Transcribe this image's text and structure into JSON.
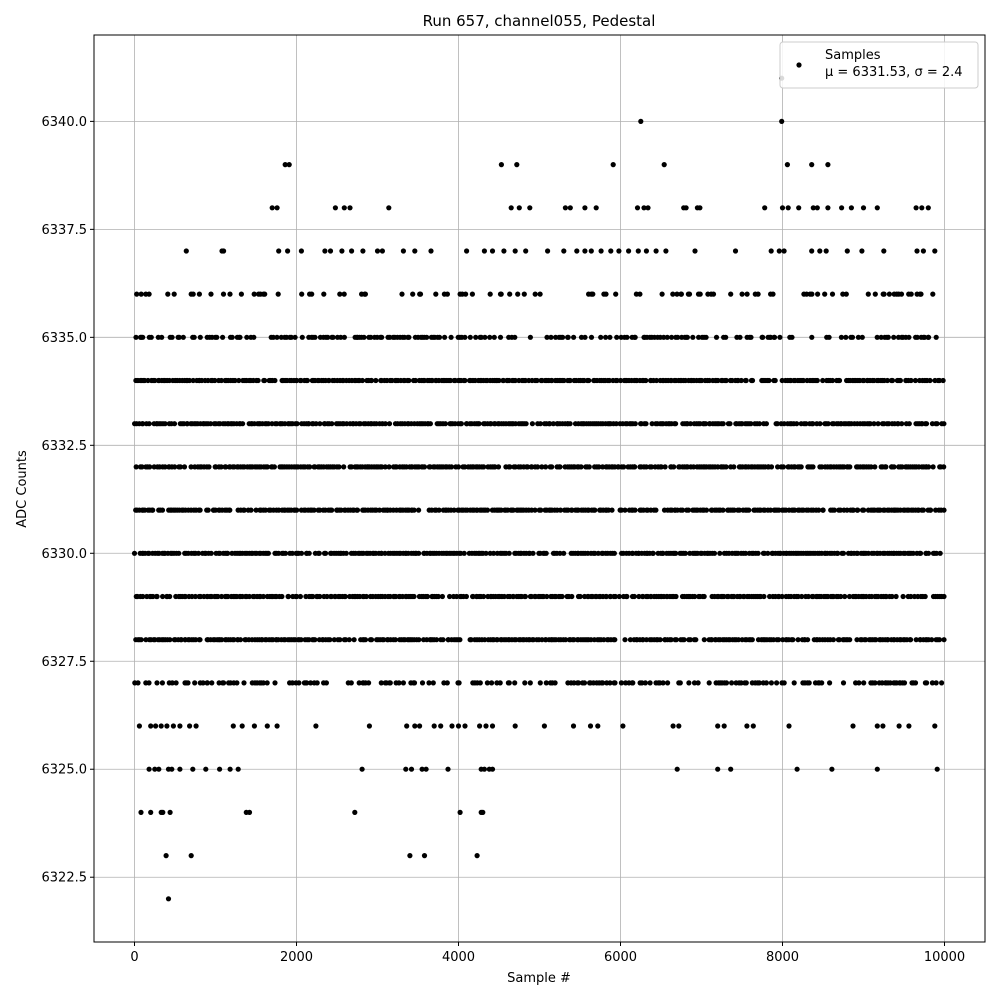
{
  "chart_data": {
    "type": "scatter",
    "title": "Run 657, channel055, Pedestal",
    "xlabel": "Sample #",
    "ylabel": "ADC Counts",
    "xlim": [
      -500,
      10500
    ],
    "ylim": [
      6321.0,
      6342.0
    ],
    "x_ticks": [
      0,
      2000,
      4000,
      6000,
      8000,
      10000
    ],
    "y_ticks": [
      6322.5,
      6325.0,
      6327.5,
      6330.0,
      6332.5,
      6335.0,
      6337.5,
      6340.0
    ],
    "x_tick_labels": [
      "0",
      "2000",
      "4000",
      "6000",
      "8000",
      "10000"
    ],
    "y_tick_labels": [
      "6322.5",
      "6325.0",
      "6327.5",
      "6330.0",
      "6332.5",
      "6335.0",
      "6337.5",
      "6340.0"
    ],
    "grid": true,
    "legend": {
      "placement": "top-right",
      "series_name": "Samples",
      "stats_text": "μ = 6331.53, σ = 2.4"
    },
    "marker_color": "#000000",
    "n_samples": 10000,
    "dense_levels": [
      6328,
      6329,
      6330,
      6331,
      6332,
      6333,
      6334
    ],
    "outer_levels": [
      6327,
      6335
    ],
    "series": [
      {
        "name": "Samples",
        "sparse_points": [
          [
            420,
            6322
          ],
          [
            390,
            6323
          ],
          [
            700,
            6323
          ],
          [
            3400,
            6323
          ],
          [
            3580,
            6323
          ],
          [
            4230,
            6323
          ],
          [
            80,
            6324
          ],
          [
            200,
            6324
          ],
          [
            330,
            6324
          ],
          [
            350,
            6324
          ],
          [
            440,
            6324
          ],
          [
            1380,
            6324
          ],
          [
            1420,
            6324
          ],
          [
            2720,
            6324
          ],
          [
            4020,
            6324
          ],
          [
            4280,
            6324
          ],
          [
            4300,
            6324
          ],
          [
            180,
            6325
          ],
          [
            250,
            6325
          ],
          [
            300,
            6325
          ],
          [
            420,
            6325
          ],
          [
            460,
            6325
          ],
          [
            560,
            6325
          ],
          [
            720,
            6325
          ],
          [
            880,
            6325
          ],
          [
            1050,
            6325
          ],
          [
            1180,
            6325
          ],
          [
            1280,
            6325
          ],
          [
            2810,
            6325
          ],
          [
            3350,
            6325
          ],
          [
            3420,
            6325
          ],
          [
            3550,
            6325
          ],
          [
            3600,
            6325
          ],
          [
            3870,
            6325
          ],
          [
            4280,
            6325
          ],
          [
            4320,
            6325
          ],
          [
            4380,
            6325
          ],
          [
            4420,
            6325
          ],
          [
            6700,
            6325
          ],
          [
            7200,
            6325
          ],
          [
            7360,
            6325
          ],
          [
            8180,
            6325
          ],
          [
            8610,
            6325
          ],
          [
            9170,
            6325
          ],
          [
            9910,
            6325
          ],
          [
            60,
            6326
          ],
          [
            200,
            6326
          ],
          [
            260,
            6326
          ],
          [
            330,
            6326
          ],
          [
            400,
            6326
          ],
          [
            480,
            6326
          ],
          [
            560,
            6326
          ],
          [
            680,
            6326
          ],
          [
            760,
            6326
          ],
          [
            1220,
            6326
          ],
          [
            1330,
            6326
          ],
          [
            1480,
            6326
          ],
          [
            1640,
            6326
          ],
          [
            1760,
            6326
          ],
          [
            2240,
            6326
          ],
          [
            2900,
            6326
          ],
          [
            3360,
            6326
          ],
          [
            3460,
            6326
          ],
          [
            3520,
            6326
          ],
          [
            3700,
            6326
          ],
          [
            3780,
            6326
          ],
          [
            3920,
            6326
          ],
          [
            4000,
            6326
          ],
          [
            4080,
            6326
          ],
          [
            4260,
            6326
          ],
          [
            4340,
            6326
          ],
          [
            4420,
            6326
          ],
          [
            4700,
            6326
          ],
          [
            5060,
            6326
          ],
          [
            5420,
            6326
          ],
          [
            5630,
            6326
          ],
          [
            5720,
            6326
          ],
          [
            6030,
            6326
          ],
          [
            6650,
            6326
          ],
          [
            6720,
            6326
          ],
          [
            7200,
            6326
          ],
          [
            7280,
            6326
          ],
          [
            7560,
            6326
          ],
          [
            7640,
            6326
          ],
          [
            8080,
            6326
          ],
          [
            8870,
            6326
          ],
          [
            9170,
            6326
          ],
          [
            9240,
            6326
          ],
          [
            9440,
            6326
          ],
          [
            9560,
            6326
          ],
          [
            9880,
            6326
          ],
          [
            640,
            6337
          ],
          [
            1080,
            6337
          ],
          [
            1100,
            6337
          ],
          [
            1780,
            6337
          ],
          [
            1890,
            6337
          ],
          [
            2060,
            6337
          ],
          [
            2350,
            6337
          ],
          [
            2420,
            6337
          ],
          [
            2560,
            6337
          ],
          [
            2680,
            6337
          ],
          [
            2820,
            6337
          ],
          [
            3000,
            6337
          ],
          [
            3060,
            6337
          ],
          [
            3320,
            6337
          ],
          [
            3460,
            6337
          ],
          [
            3660,
            6337
          ],
          [
            4100,
            6337
          ],
          [
            4320,
            6337
          ],
          [
            4420,
            6337
          ],
          [
            4560,
            6337
          ],
          [
            4700,
            6337
          ],
          [
            4830,
            6337
          ],
          [
            5100,
            6337
          ],
          [
            5300,
            6337
          ],
          [
            5460,
            6337
          ],
          [
            5560,
            6337
          ],
          [
            5640,
            6337
          ],
          [
            5760,
            6337
          ],
          [
            5880,
            6337
          ],
          [
            5980,
            6337
          ],
          [
            6100,
            6337
          ],
          [
            6220,
            6337
          ],
          [
            6320,
            6337
          ],
          [
            6440,
            6337
          ],
          [
            6560,
            6337
          ],
          [
            6920,
            6337
          ],
          [
            7420,
            6337
          ],
          [
            7860,
            6337
          ],
          [
            7960,
            6337
          ],
          [
            8020,
            6337
          ],
          [
            8360,
            6337
          ],
          [
            8460,
            6337
          ],
          [
            8540,
            6337
          ],
          [
            8800,
            6337
          ],
          [
            8980,
            6337
          ],
          [
            9250,
            6337
          ],
          [
            9660,
            6337
          ],
          [
            9740,
            6337
          ],
          [
            9880,
            6337
          ],
          [
            1700,
            6338
          ],
          [
            1760,
            6338
          ],
          [
            2480,
            6338
          ],
          [
            2590,
            6338
          ],
          [
            2660,
            6338
          ],
          [
            3140,
            6338
          ],
          [
            4650,
            6338
          ],
          [
            4750,
            6338
          ],
          [
            4880,
            6338
          ],
          [
            5320,
            6338
          ],
          [
            5380,
            6338
          ],
          [
            5560,
            6338
          ],
          [
            5700,
            6338
          ],
          [
            6210,
            6338
          ],
          [
            6290,
            6338
          ],
          [
            6340,
            6338
          ],
          [
            6780,
            6338
          ],
          [
            6810,
            6338
          ],
          [
            6950,
            6338
          ],
          [
            6980,
            6338
          ],
          [
            7780,
            6338
          ],
          [
            8000,
            6338
          ],
          [
            8070,
            6338
          ],
          [
            8200,
            6338
          ],
          [
            8380,
            6338
          ],
          [
            8430,
            6338
          ],
          [
            8560,
            6338
          ],
          [
            8730,
            6338
          ],
          [
            8850,
            6338
          ],
          [
            9000,
            6338
          ],
          [
            9170,
            6338
          ],
          [
            9650,
            6338
          ],
          [
            9720,
            6338
          ],
          [
            9800,
            6338
          ],
          [
            1860,
            6339
          ],
          [
            1910,
            6339
          ],
          [
            4530,
            6339
          ],
          [
            4720,
            6339
          ],
          [
            5910,
            6339
          ],
          [
            6540,
            6339
          ],
          [
            8060,
            6339
          ],
          [
            8360,
            6339
          ],
          [
            8560,
            6339
          ],
          [
            6250,
            6340
          ],
          [
            7990,
            6340
          ],
          [
            7990,
            6341
          ]
        ]
      }
    ]
  }
}
